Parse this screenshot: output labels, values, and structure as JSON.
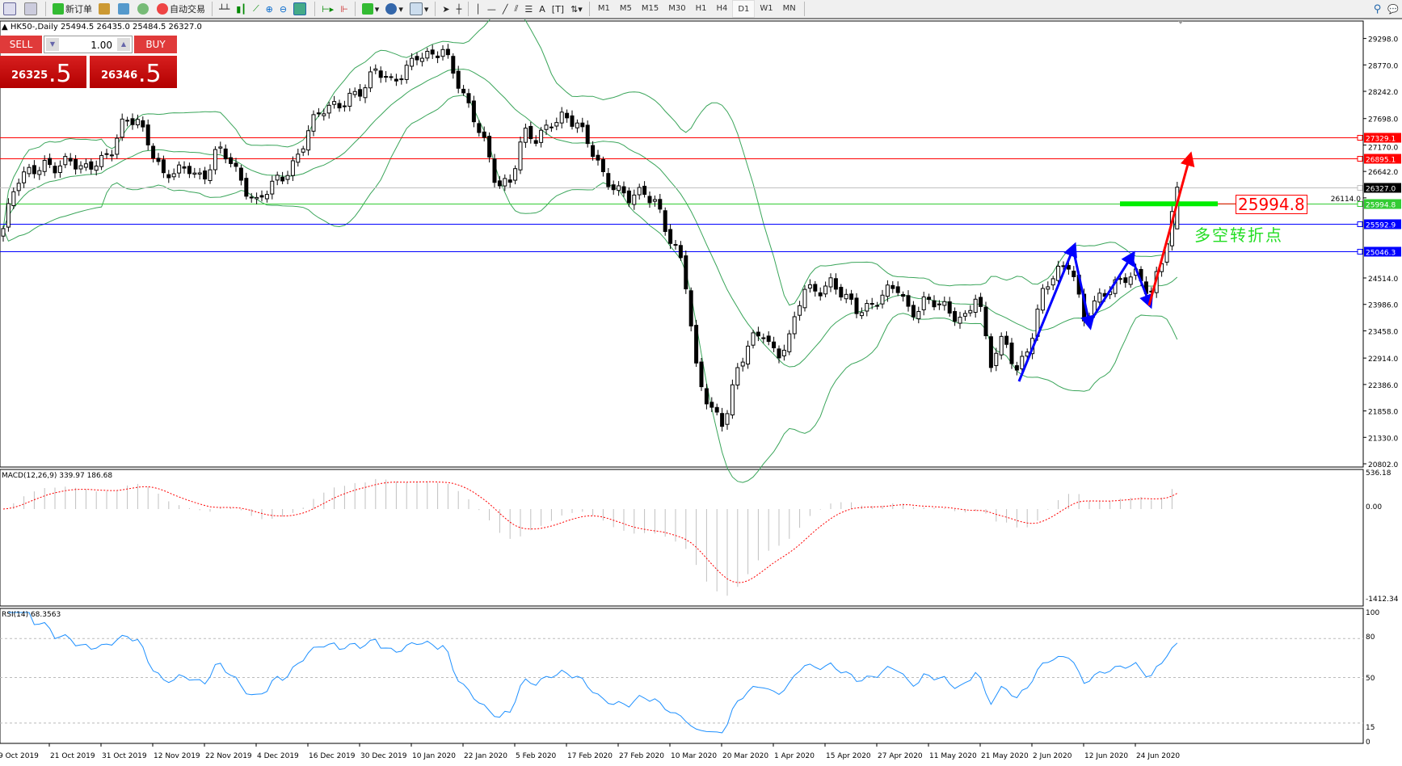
{
  "toolbar": {
    "new_order": "新订单",
    "auto_trading": "自动交易",
    "timeframes": [
      "M1",
      "M5",
      "M15",
      "M30",
      "H1",
      "H4",
      "D1",
      "W1",
      "MN"
    ],
    "active_timeframe": "D1",
    "icons": [
      "list-icon",
      "zoom-window-icon",
      "new-order-icon",
      "gold-icon",
      "server-icon",
      "signal-icon",
      "auto-trading-icon",
      "bar-chart-icon",
      "candle-chart-icon",
      "line-chart-icon",
      "zoom-in-icon",
      "zoom-out-icon",
      "tile-windows-icon",
      "auto-scroll-icon",
      "chart-shift-icon",
      "indicators-icon",
      "periods-icon",
      "templates-icon",
      "cursor-icon",
      "crosshair-icon",
      "vertical-line-icon",
      "horizontal-line-icon",
      "trendline-icon",
      "equidistant-channel-icon",
      "fibonacci-icon",
      "text-icon",
      "label-icon",
      "arrows-icon",
      "search-icon",
      "chat-icon"
    ]
  },
  "symbol_header": "HK50-,Daily  25494.5 26435.0 25484.5 26327.0",
  "trade_panel": {
    "sell_label": "SELL",
    "buy_label": "BUY",
    "lot": "1.00",
    "sell_price_main": "26325",
    "sell_price_big": ".5",
    "buy_price_main": "26346",
    "buy_price_big": ".5"
  },
  "annotation": {
    "level_label": "25994.8",
    "text": "多空转折点",
    "text_color": "#22dd22"
  },
  "indicators": {
    "macd_label": "MACD(12,26,9) 339.97 186.68",
    "macd_axis": [
      "536.18",
      "0.00",
      "-1412.34"
    ],
    "rsi_label": "RSI(14) 68.3563",
    "rsi_axis": [
      "100",
      "80",
      "50",
      "15",
      "0"
    ]
  },
  "chart_data": {
    "type": "candlestick",
    "symbol": "HK50-",
    "timeframe": "Daily",
    "ylim": [
      20802.0,
      29298.0
    ],
    "price_axis_labels": [
      "29298.0",
      "28770.0",
      "28242.0",
      "27698.0",
      "27170.0",
      "26642.0",
      "26114.0",
      "24514.0",
      "23986.0",
      "23458.0",
      "22914.0",
      "22386.0",
      "21858.0",
      "21330.0",
      "20802.0"
    ],
    "time_labels": [
      "9 Oct 2019",
      "21 Oct 2019",
      "31 Oct 2019",
      "12 Nov 2019",
      "22 Nov 2019",
      "4 Dec 2019",
      "16 Dec 2019",
      "30 Dec 2019",
      "10 Jan 2020",
      "22 Jan 2020",
      "5 Feb 2020",
      "17 Feb 2020",
      "27 Feb 2020",
      "10 Mar 2020",
      "20 Mar 2020",
      "1 Apr 2020",
      "15 Apr 2020",
      "27 Apr 2020",
      "11 May 2020",
      "21 May 2020",
      "2 Jun 2020",
      "12 Jun 2020",
      "24 Jun 2020"
    ],
    "last_bar": {
      "open": 25494.5,
      "high": 26435.0,
      "low": 25484.5,
      "close": 26327.0
    },
    "close_path": [
      25500,
      26400,
      26650,
      26850,
      26700,
      26800,
      26700,
      26900,
      26940,
      27566,
      27744,
      27210,
      26500,
      26600,
      26760,
      26500,
      27030,
      26850,
      26400,
      26047,
      26300,
      26500,
      26940,
      27600,
      27830,
      27920,
      28200,
      28300,
      28637,
      28400,
      28700,
      28950,
      28850,
      29100,
      28550,
      27834,
      27210,
      26400,
      26500,
      27387,
      27210,
      27650,
      27800,
      27550,
      27100,
      26600,
      26315,
      26050,
      26200,
      26050,
      25300,
      24700,
      22565,
      22000,
      21600,
      22565,
      23279,
      23500,
      22900,
      23279,
      24351,
      24300,
      24400,
      24100,
      23900,
      24000,
      24170,
      24300,
      23800,
      24100,
      24000,
      23750,
      23700,
      24300,
      22743,
      23279,
      22700,
      23279,
      24250,
      24600,
      24900,
      23700,
      24000,
      24300,
      24600,
      24600,
      24080,
      25000,
      26327
    ],
    "horizontal_lines": [
      {
        "price": 27329.1,
        "label": "27329.1",
        "color": "#ff0000"
      },
      {
        "price": 26895.1,
        "label": "26895.1",
        "color": "#ff0000"
      },
      {
        "price": 26327.0,
        "label": "26327.0",
        "color": "#000000"
      },
      {
        "price": 25994.8,
        "label": "25994.8",
        "color": "#33cc33"
      },
      {
        "price": 25592.9,
        "label": "25592.9",
        "color": "#0000ff"
      },
      {
        "price": 25046.3,
        "label": "25046.3",
        "color": "#0000ff"
      }
    ],
    "indicators": [
      "Bollinger Bands(20,2)",
      "MACD(12,26,9)",
      "RSI(14)"
    ],
    "rsi_levels": [
      80,
      50,
      15
    ],
    "colors": {
      "bands": "#3aa55a",
      "macd_signal": "#ff0000",
      "macd_hist": "#c0c0c0",
      "rsi": "#1e90ff",
      "up_arrows": "#0000ff",
      "breakout_arrow": "#ff0000"
    }
  }
}
